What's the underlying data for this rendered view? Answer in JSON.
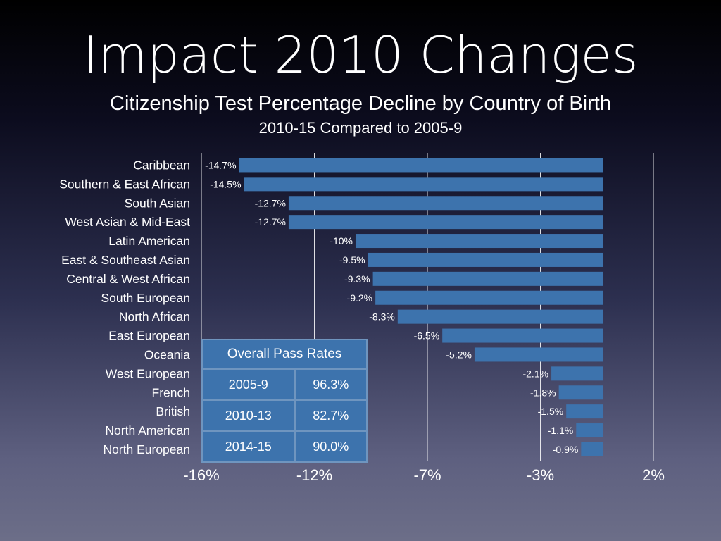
{
  "title": "Impact 2010 Changes",
  "subtitle": "Citizenship Test Percentage Decline by Country of Birth",
  "subtitle2": "2010-15 Compared to 2005-9",
  "colors": {
    "bar": "#3d73ad",
    "grid": "#ffffff",
    "text": "#ffffff"
  },
  "chart_data": {
    "type": "bar",
    "orientation": "horizontal",
    "categories": [
      "Caribbean",
      "Southern & East African",
      "South Asian",
      "West Asian & Mid-East",
      "Latin American",
      "East & Southeast Asian",
      "Central & West African",
      "South European",
      "North African",
      "East European",
      "Oceania",
      "West European",
      "French",
      "British",
      "North American",
      "North European"
    ],
    "values": [
      -14.7,
      -14.5,
      -12.7,
      -12.7,
      -10,
      -9.5,
      -9.3,
      -9.2,
      -8.3,
      -6.5,
      -5.2,
      -2.1,
      -1.8,
      -1.5,
      -1.1,
      -0.9
    ],
    "data_labels": [
      "-14.7%",
      "-14.5%",
      "-12.7%",
      "-12.7%",
      "-10%",
      "-9.5%",
      "-9.3%",
      "-9.2%",
      "-8.3%",
      "-6.5%",
      "-5.2%",
      "-2.1%",
      "-1.8%",
      "-1.5%",
      "-1.1%",
      "-0.9%"
    ],
    "x_ticks": [
      -16,
      -11.5,
      -7,
      -2.5,
      2
    ],
    "x_tick_labels": [
      "-16%",
      "-12%",
      "-7%",
      "-3%",
      "2%"
    ],
    "xlim": [
      -16,
      2
    ],
    "grid": true
  },
  "pass_table": {
    "header": "Overall Pass Rates",
    "rows": [
      {
        "period": "2005-9",
        "rate": "96.3%"
      },
      {
        "period": "2010-13",
        "rate": "82.7%"
      },
      {
        "period": "2014-15",
        "rate": "90.0%"
      }
    ]
  }
}
